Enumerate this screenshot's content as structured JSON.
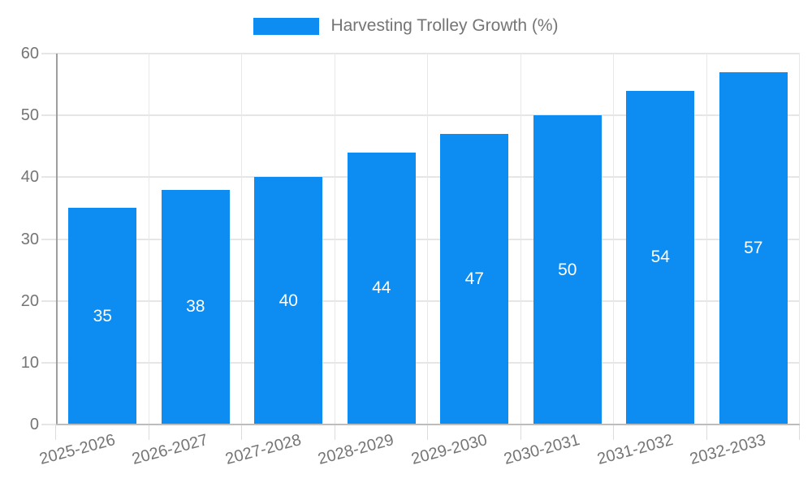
{
  "legend": {
    "label": "Harvesting Trolley Growth (%)"
  },
  "chart_data": {
    "type": "bar",
    "title": "Harvesting Trolley Growth (%)",
    "categories": [
      "2025-2026",
      "2026-2027",
      "2027-2028",
      "2028-2029",
      "2029-2030",
      "2030-2031",
      "2031-2032",
      "2032-2033"
    ],
    "values": [
      35,
      38,
      40,
      44,
      47,
      50,
      54,
      57
    ],
    "data_labels": [
      "35",
      "38",
      "40",
      "44",
      "47",
      "50",
      "54",
      "57"
    ],
    "xlabel": "",
    "ylabel": "",
    "ylim": [
      0,
      60
    ],
    "yticks": [
      0,
      10,
      20,
      30,
      40,
      50,
      60
    ],
    "grid": true,
    "legend_position": "top",
    "bar_color": "#0d8df2",
    "data_label_color": "#ffffff",
    "axis_text_color": "#757575",
    "gridline_color": "#e6e6e6",
    "axis_line_color": "#9e9e9e"
  }
}
